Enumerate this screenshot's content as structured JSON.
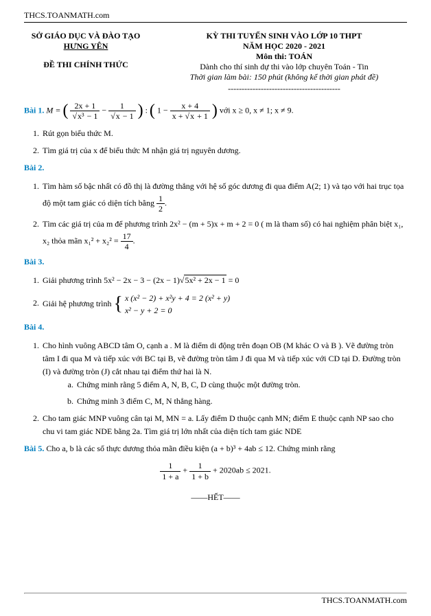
{
  "site": "THCS.TOANMATH.com",
  "header": {
    "left": {
      "line1": "SỞ GIÁO DỤC VÀ ĐÀO TẠO",
      "line2": "HƯNG YÊN",
      "line3": "ĐỀ THI CHÍNH THỨC"
    },
    "right": {
      "line1": "KỲ THI TUYỂN SINH VÀO LỚP 10 THPT",
      "line2": "NĂM HỌC 2020 - 2021",
      "line3": "Môn thi: TOÁN",
      "line4": "Dành cho thí sinh dự thi vào lớp chuyên Toán - Tin",
      "line5": "Thời gian làm bài: 150 phút (không kể thời gian phát đề)",
      "dashes": "-----------------------------------------"
    }
  },
  "bai1": {
    "label": "Bài 1.",
    "stem_prefix": "M = ",
    "cond": " với x ≥ 0, x ≠ 1; x ≠ 9.",
    "items": [
      "Rút gọn biểu thức M.",
      "Tìm giá trị của x để biểu thức M nhận giá trị nguyên dương."
    ],
    "frac1_num": "2x + 1",
    "frac1_den_rad": "x³",
    "frac1_den_tail": " − 1",
    "frac2_num": "1",
    "frac2_den_rad": "x",
    "frac2_den_tail": " − 1",
    "frac3_pre": "1 − ",
    "frac3_num": "x + 4",
    "frac3_den_pre": "x + ",
    "frac3_den_rad": "x",
    "frac3_den_tail": " + 1"
  },
  "bai2": {
    "label": "Bài 2.",
    "i1_a": "Tìm hàm số bậc nhất có đồ thị là đường thẳng với hệ số góc dương đi qua điểm A(2; 1) và tạo với hai trục tọa độ một tam giác có diện tích bằng ",
    "i1_frac_num": "1",
    "i1_frac_den": "2",
    "i1_b": ".",
    "i2_a": "Tìm các giá trị của m để phương trình 2x² − (m + 5)x + m + 2 = 0 ( m là tham số) có hai nghiệm phân biệt x₁, x₂ thỏa mãn x₁² + x₂² = ",
    "i2_frac_num": "17",
    "i2_frac_den": "4",
    "i2_b": "."
  },
  "bai3": {
    "label": "Bài 3.",
    "i1_a": "Giải phương trình 5x² − 2x − 3 − (2x − 1)",
    "i1_rad": "5x² + 2x − 1",
    "i1_b": " = 0",
    "i2_a": "Giải hệ phương trình ",
    "sys_line1": "x (x² − 2) + x²y + 4 = 2 (x² + y)",
    "sys_line2": "x² − y + 2 = 0"
  },
  "bai4": {
    "label": "Bài 4.",
    "i1": "Cho hình vuông ABCD tâm O, cạnh a . M là điểm di động trên đoạn OB (M khác O và B ). Vẽ đường tròn tâm I đi qua M và tiếp xúc với BC tại B, vẽ đường tròn tâm J đi qua M và tiếp xúc với CD tại D. Đường tròn (I) và đường tròn (J) cắt nhau tại điểm thứ hai là N.",
    "sub_a": "Chứng minh rằng 5 điểm A, N, B, C, D cùng thuộc một đường tròn.",
    "sub_b": "Chứng minh 3 điểm C, M, N thẳng hàng.",
    "i2": "Cho tam giác MNP vuông cân tại M, MN = a. Lấy điểm D thuộc cạnh MN; điểm E thuộc cạnh NP sao cho chu vi tam giác NDE bằng 2a. Tìm giá trị lớn nhất của diện tích tam giác NDE"
  },
  "bai5": {
    "label": "Bài 5.",
    "stem_a": "Cho a, b là các số thực dương thỏa mãn điều kiện (a + b)³ + 4ab ≤ 12. Chứng minh rằng",
    "eq_f1_num": "1",
    "eq_f1_den": "1 + a",
    "eq_plus": " + ",
    "eq_f2_num": "1",
    "eq_f2_den": "1 + b",
    "eq_tail": " + 2020ab ≤ 2021."
  },
  "het": "——HẾT——",
  "colors": {
    "text": "#000000",
    "accent": "#007fbf",
    "bg": "#ffffff"
  }
}
